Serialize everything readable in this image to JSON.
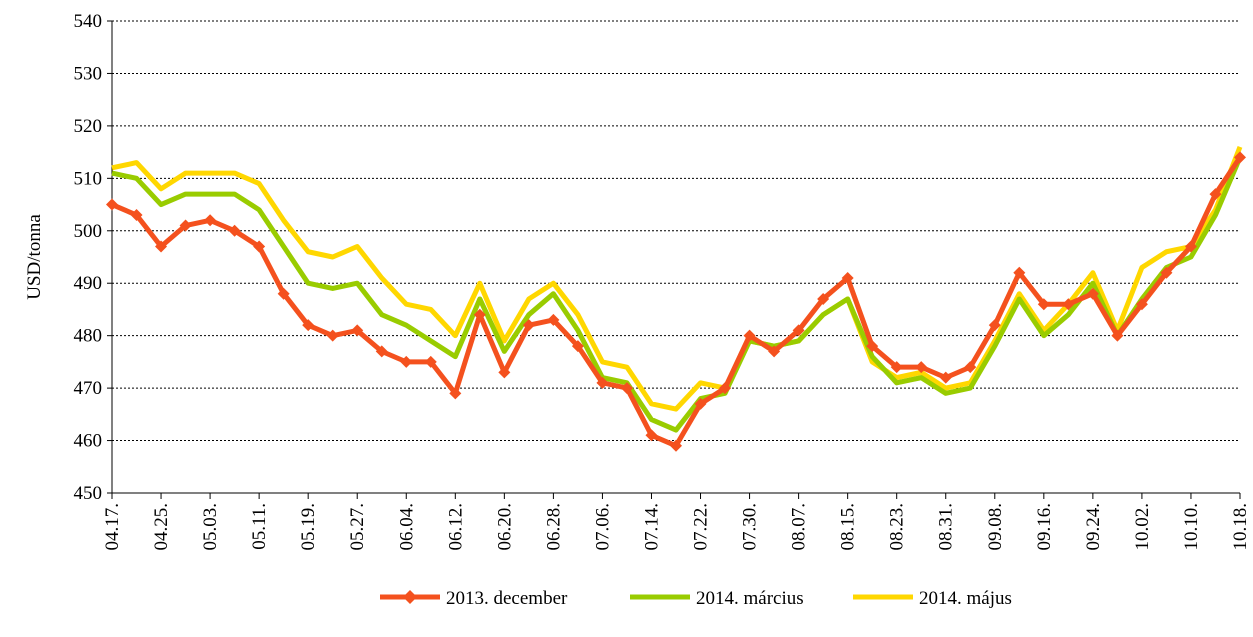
{
  "chart_data": {
    "type": "line",
    "y_label": "USD/tonna",
    "categories": [
      "04.17.",
      null,
      "04.25.",
      null,
      "05.03.",
      null,
      "05.11.",
      null,
      "05.19.",
      null,
      "05.27.",
      null,
      "06.04.",
      null,
      "06.12.",
      null,
      "06.20.",
      null,
      "06.28.",
      null,
      "07.06.",
      null,
      "07.14.",
      null,
      "07.22.",
      null,
      "07.30.",
      null,
      "08.07.",
      null,
      "08.15.",
      null,
      "08.23.",
      null,
      "08.31.",
      null,
      "09.08.",
      null,
      "09.16.",
      null,
      "09.24.",
      null,
      "10.02.",
      null,
      "10.10.",
      null,
      "10.18."
    ],
    "series": [
      {
        "name": "2013. december",
        "color": "#f4511e",
        "marker": "diamond",
        "values": [
          505,
          503,
          497,
          501,
          502,
          500,
          497,
          488,
          482,
          480,
          481,
          477,
          475,
          475,
          469,
          484,
          473,
          482,
          483,
          478,
          471,
          470,
          461,
          459,
          467,
          470,
          480,
          477,
          481,
          487,
          491,
          478,
          474,
          474,
          472,
          474,
          482,
          492,
          486,
          486,
          488,
          480,
          486,
          492,
          497,
          507,
          514
        ]
      },
      {
        "name": "2014. március",
        "color": "#99cc00",
        "values": [
          511,
          510,
          505,
          507,
          507,
          507,
          504,
          497,
          490,
          489,
          490,
          484,
          482,
          479,
          476,
          487,
          477,
          484,
          488,
          481,
          472,
          471,
          464,
          462,
          468,
          469,
          479,
          478,
          479,
          484,
          487,
          476,
          471,
          472,
          469,
          470,
          478,
          487,
          480,
          484,
          490,
          480,
          487,
          493,
          495,
          503,
          514
        ]
      },
      {
        "name": "2014. május",
        "color": "#ffd700",
        "values": [
          512,
          513,
          508,
          511,
          511,
          511,
          509,
          502,
          496,
          495,
          497,
          491,
          486,
          485,
          480,
          490,
          479,
          487,
          490,
          484,
          475,
          474,
          467,
          466,
          471,
          470,
          479,
          478,
          479,
          484,
          487,
          475,
          472,
          473,
          470,
          471,
          479,
          488,
          481,
          486,
          492,
          481,
          493,
          496,
          497,
          504,
          516
        ]
      }
    ],
    "ylim": [
      450,
      540
    ],
    "yticks": [
      450,
      460,
      470,
      480,
      490,
      500,
      510,
      520,
      530,
      540
    ],
    "grid": true,
    "legend": "bottom"
  }
}
